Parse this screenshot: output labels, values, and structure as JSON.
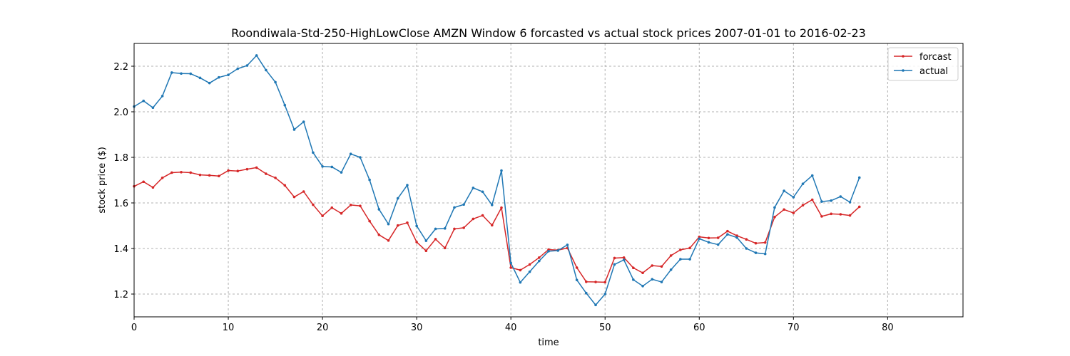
{
  "chart_data": {
    "type": "line",
    "title": "Roondiwala-Std-250-HighLowClose AMZN Window 6 forcasted vs actual stock prices 2007-01-01 to 2016-02-23",
    "xlabel": "time",
    "ylabel": "stock price ($)",
    "xlim": [
      0,
      88
    ],
    "ylim": [
      1.1,
      2.3
    ],
    "xticks": [
      0,
      10,
      20,
      30,
      40,
      50,
      60,
      70,
      80
    ],
    "yticks": [
      1.2,
      1.4,
      1.6,
      1.8,
      2.0,
      2.2
    ],
    "xtick_labels": [
      "0",
      "10",
      "20",
      "30",
      "40",
      "50",
      "60",
      "70",
      "80"
    ],
    "ytick_labels": [
      "1.2",
      "1.4",
      "1.6",
      "1.8",
      "2.0",
      "2.2"
    ],
    "grid": true,
    "legend_position": "top-right",
    "series": [
      {
        "name": "forcast",
        "color": "#d62728",
        "values": [
          1.673,
          1.693,
          1.668,
          1.71,
          1.733,
          1.735,
          1.733,
          1.723,
          1.721,
          1.718,
          1.742,
          1.74,
          1.748,
          1.755,
          1.728,
          1.71,
          1.677,
          1.626,
          1.65,
          1.592,
          1.543,
          1.579,
          1.554,
          1.591,
          1.587,
          1.52,
          1.46,
          1.435,
          1.501,
          1.513,
          1.428,
          1.39,
          1.441,
          1.402,
          1.486,
          1.491,
          1.53,
          1.545,
          1.502,
          1.579,
          1.316,
          1.305,
          1.33,
          1.36,
          1.395,
          1.393,
          1.402,
          1.316,
          1.254,
          1.253,
          1.252,
          1.358,
          1.36,
          1.315,
          1.293,
          1.325,
          1.321,
          1.369,
          1.394,
          1.402,
          1.451,
          1.446,
          1.447,
          1.476,
          1.456,
          1.44,
          1.423,
          1.426,
          1.538,
          1.571,
          1.556,
          1.59,
          1.614,
          1.541,
          1.552,
          1.55,
          1.545,
          1.583
        ]
      },
      {
        "name": "actual",
        "color": "#1f77b4",
        "values": [
          2.023,
          2.048,
          2.018,
          2.069,
          2.172,
          2.168,
          2.167,
          2.149,
          2.126,
          2.151,
          2.162,
          2.189,
          2.203,
          2.247,
          2.183,
          2.13,
          2.029,
          1.922,
          1.956,
          1.821,
          1.76,
          1.758,
          1.734,
          1.815,
          1.8,
          1.701,
          1.572,
          1.507,
          1.62,
          1.678,
          1.499,
          1.434,
          1.486,
          1.488,
          1.58,
          1.593,
          1.666,
          1.649,
          1.591,
          1.742,
          1.336,
          1.251,
          1.298,
          1.345,
          1.388,
          1.391,
          1.416,
          1.262,
          1.204,
          1.152,
          1.2,
          1.33,
          1.35,
          1.263,
          1.235,
          1.265,
          1.253,
          1.307,
          1.353,
          1.353,
          1.443,
          1.427,
          1.417,
          1.462,
          1.448,
          1.4,
          1.381,
          1.376,
          1.58,
          1.653,
          1.625,
          1.684,
          1.72,
          1.606,
          1.61,
          1.628,
          1.603,
          1.711
        ]
      }
    ]
  }
}
